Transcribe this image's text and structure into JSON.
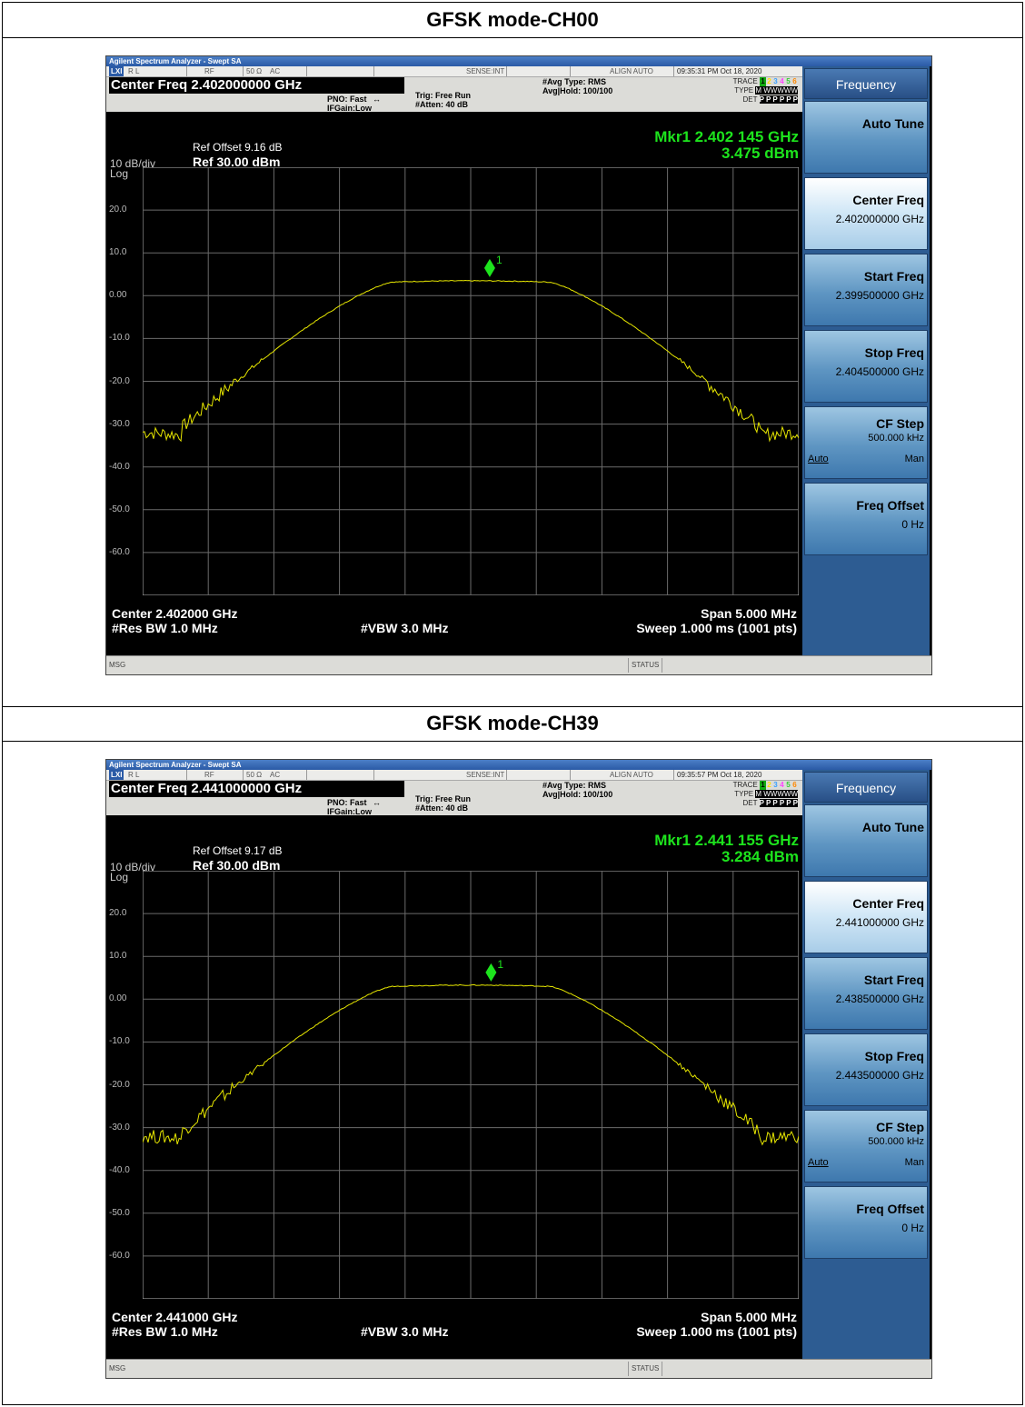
{
  "panels": [
    {
      "title": "GFSK mode-CH00",
      "window_title": "Agilent Spectrum Analyzer - Swept SA",
      "status": {
        "rl": "R L",
        "rf": "RF",
        "imp": "50 Ω",
        "ac": "AC",
        "sense": "SENSE:INT",
        "align": "ALIGN AUTO",
        "datetime": "09:35:31 PM Oct 18, 2020"
      },
      "center_freq_label": "Center Freq 2.402000000 GHz",
      "pno": "PNO: Fast",
      "ifgain": "IFGain:Low",
      "trig": "Trig: Free Run",
      "atten": "#Atten: 40 dB",
      "avg_type": "#Avg Type: RMS",
      "avg_hold": "Avg|Hold: 100/100",
      "trace": {
        "trace_label": "TRACE",
        "type_label": "TYPE",
        "det_label": "DET",
        "nums": [
          "1",
          "2",
          "3",
          "4",
          "5",
          "6"
        ],
        "type_val": "M WWWWW",
        "det_val": "P P P P P P"
      },
      "ref_offset": "Ref Offset 9.16 dB",
      "ref_level": "Ref 30.00 dBm",
      "div": "10 dB/div",
      "log": "Log",
      "marker_freq": "Mkr1 2.402 145 GHz",
      "marker_amp": "3.475 dBm",
      "marker_num": "1",
      "y_ticks": [
        "20.0",
        "10.0",
        "0.00",
        "-10.0",
        "-20.0",
        "-30.0",
        "-40.0",
        "-50.0",
        "-60.0"
      ],
      "center": "Center 2.402000 GHz",
      "res_bw": "#Res BW 1.0 MHz",
      "vbw": "#VBW 3.0 MHz",
      "span": "Span 5.000 MHz",
      "sweep": "Sweep  1.000 ms (1001 pts)",
      "msg": "MSG",
      "status_lbl": "STATUS",
      "softkeys": {
        "menu": "Frequency",
        "auto_tune": "Auto Tune",
        "center_freq": "Center Freq",
        "center_freq_val": "2.402000000 GHz",
        "start_freq": "Start Freq",
        "start_freq_val": "2.399500000 GHz",
        "stop_freq": "Stop Freq",
        "stop_freq_val": "2.404500000 GHz",
        "cf_step": "CF Step",
        "cf_step_val": "500.000 kHz",
        "auto": "Auto",
        "man": "Man",
        "freq_offset": "Freq Offset",
        "freq_offset_val": "0 Hz"
      },
      "trace_color": "#e6e600",
      "marker_color": "#1de41d",
      "marker_x_frac": 0.529,
      "peak_dbm": 3.475
    },
    {
      "title": "GFSK mode-CH39",
      "window_title": "Agilent Spectrum Analyzer - Swept SA",
      "status": {
        "rl": "R L",
        "rf": "RF",
        "imp": "50 Ω",
        "ac": "AC",
        "sense": "SENSE:INT",
        "align": "ALIGN AUTO",
        "datetime": "09:35:57 PM Oct 18, 2020"
      },
      "center_freq_label": "Center Freq 2.441000000 GHz",
      "pno": "PNO: Fast",
      "ifgain": "IFGain:Low",
      "trig": "Trig: Free Run",
      "atten": "#Atten: 40 dB",
      "avg_type": "#Avg Type: RMS",
      "avg_hold": "Avg|Hold: 100/100",
      "trace": {
        "trace_label": "TRACE",
        "type_label": "TYPE",
        "det_label": "DET",
        "nums": [
          "1",
          "2",
          "3",
          "4",
          "5",
          "6"
        ],
        "type_val": "M WWWWW",
        "det_val": "P P P P P P"
      },
      "ref_offset": "Ref Offset 9.17 dB",
      "ref_level": "Ref 30.00 dBm",
      "div": "10 dB/div",
      "log": "Log",
      "marker_freq": "Mkr1 2.441 155 GHz",
      "marker_amp": "3.284 dBm",
      "marker_num": "1",
      "y_ticks": [
        "20.0",
        "10.0",
        "0.00",
        "-10.0",
        "-20.0",
        "-30.0",
        "-40.0",
        "-50.0",
        "-60.0"
      ],
      "center": "Center 2.441000 GHz",
      "res_bw": "#Res BW 1.0 MHz",
      "vbw": "#VBW 3.0 MHz",
      "span": "Span 5.000 MHz",
      "sweep": "Sweep  1.000 ms (1001 pts)",
      "msg": "MSG",
      "status_lbl": "STATUS",
      "softkeys": {
        "menu": "Frequency",
        "auto_tune": "Auto Tune",
        "center_freq": "Center Freq",
        "center_freq_val": "2.441000000 GHz",
        "start_freq": "Start Freq",
        "start_freq_val": "2.438500000 GHz",
        "stop_freq": "Stop Freq",
        "stop_freq_val": "2.443500000 GHz",
        "cf_step": "CF Step",
        "cf_step_val": "500.000 kHz",
        "auto": "Auto",
        "man": "Man",
        "freq_offset": "Freq Offset",
        "freq_offset_val": "0 Hz"
      },
      "trace_color": "#e6e600",
      "marker_color": "#1de41d",
      "marker_x_frac": 0.531,
      "peak_dbm": 3.284
    }
  ]
}
